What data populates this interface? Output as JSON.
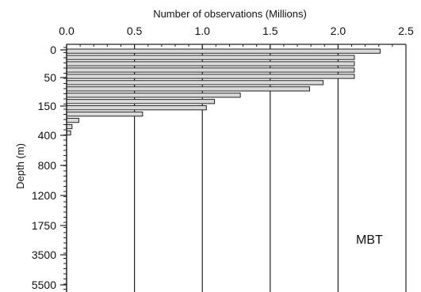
{
  "chart_data": {
    "type": "bar",
    "orientation": "horizontal",
    "xlabel": "Number of observations (Millions)",
    "ylabel": "Depth (m)",
    "annotation": "MBT",
    "xlim": [
      0.0,
      2.5
    ],
    "xticks": [
      0.0,
      0.5,
      1.0,
      1.5,
      2.0,
      2.5
    ],
    "xtick_labels": [
      "0.0",
      "0.5",
      "1.0",
      "1.5",
      "2.0",
      "2.5"
    ],
    "yticks": [
      "0",
      "50",
      "150",
      "400",
      "800",
      "1200",
      "1750",
      "3500",
      "5500"
    ],
    "grid": "vertical",
    "bar_color": "#d9d9d9",
    "values": [
      2.31,
      2.12,
      2.12,
      2.12,
      2.12,
      1.89,
      1.79,
      1.28,
      1.09,
      1.03,
      0.56,
      0.09,
      0.04,
      0.03
    ]
  }
}
